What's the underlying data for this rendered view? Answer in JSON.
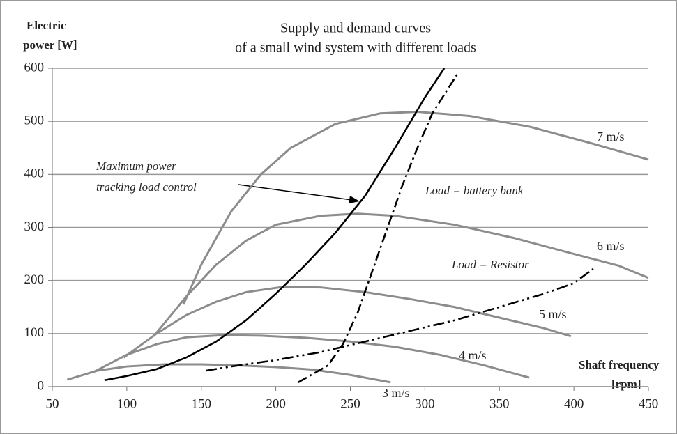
{
  "chart_data": {
    "type": "line",
    "title": "Supply and demand curves",
    "subtitle": "of a small wind system with different loads",
    "ylabel": [
      "Electric",
      "power [W]"
    ],
    "xlabel": [
      "Shaft frequency",
      "[rpm]"
    ],
    "xlim": [
      50,
      450
    ],
    "xticks": [
      50,
      100,
      150,
      200,
      250,
      300,
      350,
      400,
      450
    ],
    "ylim": [
      0,
      600
    ],
    "yticks": [
      0,
      100,
      200,
      300,
      400,
      500,
      600
    ],
    "grid": true,
    "annotations": [
      {
        "lines": [
          "Maximum power",
          "tracking load control"
        ]
      }
    ],
    "series": [
      {
        "name": "3 m/s",
        "color": "#8c8c8c",
        "linestyle": "solid",
        "x": [
          60,
          80,
          100,
          125,
          150,
          175,
          200,
          225,
          250,
          277
        ],
        "values": [
          13,
          30,
          38,
          42,
          42,
          40,
          37,
          32,
          22,
          8
        ]
      },
      {
        "name": "4 m/s",
        "color": "#8c8c8c",
        "linestyle": "solid",
        "x": [
          78,
          100,
          120,
          140,
          165,
          190,
          220,
          250,
          280,
          310,
          340,
          370
        ],
        "values": [
          28,
          60,
          80,
          93,
          97,
          96,
          92,
          85,
          75,
          60,
          40,
          17
        ]
      },
      {
        "name": "5 m/s",
        "color": "#8c8c8c",
        "linestyle": "solid",
        "x": [
          98,
          120,
          140,
          160,
          180,
          205,
          230,
          260,
          290,
          320,
          350,
          380,
          398
        ],
        "values": [
          55,
          100,
          135,
          160,
          178,
          188,
          187,
          178,
          165,
          150,
          130,
          110,
          95
        ]
      },
      {
        "name": "6 m/s",
        "color": "#8c8c8c",
        "linestyle": "solid",
        "x": [
          118,
          140,
          160,
          180,
          200,
          230,
          255,
          280,
          320,
          360,
          400,
          430,
          450
        ],
        "values": [
          95,
          170,
          230,
          275,
          305,
          322,
          326,
          322,
          305,
          280,
          250,
          228,
          205
        ]
      },
      {
        "name": "7 m/s",
        "color": "#8c8c8c",
        "linestyle": "solid",
        "x": [
          138,
          150,
          170,
          190,
          210,
          240,
          270,
          295,
          330,
          370,
          410,
          450
        ],
        "values": [
          155,
          230,
          330,
          400,
          450,
          495,
          515,
          518,
          510,
          490,
          460,
          428
        ]
      },
      {
        "color": "#000000",
        "linestyle": "solid",
        "x": [
          85,
          100,
          120,
          140,
          160,
          180,
          200,
          220,
          240,
          260,
          280,
          300,
          313
        ],
        "values": [
          12,
          20,
          33,
          55,
          85,
          125,
          175,
          230,
          290,
          360,
          450,
          545,
          600
        ]
      },
      {
        "name": "Load = battery bank",
        "color": "#000000",
        "linestyle": "dashdot",
        "x": [
          215,
          235,
          245,
          255,
          265,
          275,
          285,
          295,
          305,
          322
        ],
        "values": [
          8,
          40,
          80,
          140,
          220,
          300,
          380,
          450,
          515,
          590
        ]
      },
      {
        "name": "Load = Resistor",
        "color": "#000000",
        "linestyle": "dashdotdot",
        "x": [
          153,
          170,
          200,
          230,
          260,
          290,
          320,
          350,
          380,
          400,
          413
        ],
        "values": [
          30,
          38,
          50,
          65,
          85,
          105,
          125,
          150,
          175,
          195,
          222
        ]
      }
    ]
  }
}
